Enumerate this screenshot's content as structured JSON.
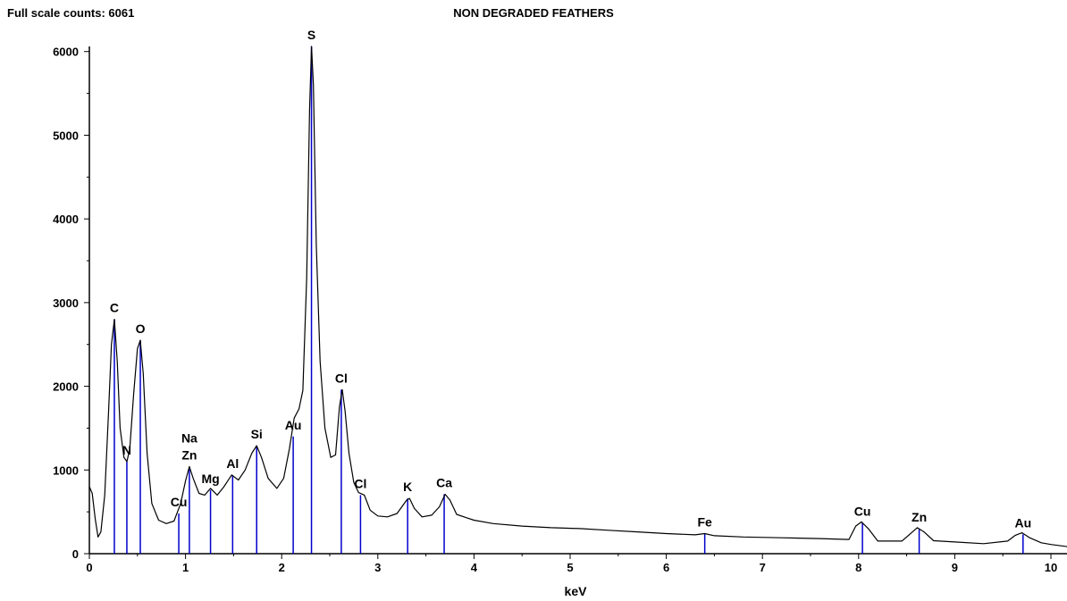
{
  "header": {
    "full_scale": "Full scale counts: 6061",
    "title": "NON DEGRADED FEATHERS"
  },
  "colors": {
    "marker": "#0000cc",
    "spectrum": "#000000",
    "axis": "#000000"
  },
  "chart_data": {
    "type": "line",
    "title": "NON DEGRADED FEATHERS",
    "xlabel": "keV",
    "ylabel": "",
    "xlim": [
      0,
      10.2
    ],
    "ylim": [
      0,
      6061
    ],
    "x_ticks": [
      0,
      1,
      2,
      3,
      4,
      5,
      6,
      7,
      8,
      9,
      10
    ],
    "y_ticks": [
      0,
      1000,
      2000,
      3000,
      4000,
      5000,
      6000
    ],
    "full_scale_counts": 6061,
    "series": [
      {
        "points": [
          [
            0.0,
            800
          ],
          [
            0.03,
            720
          ],
          [
            0.06,
            420
          ],
          [
            0.09,
            200
          ],
          [
            0.12,
            260
          ],
          [
            0.16,
            700
          ],
          [
            0.2,
            1700
          ],
          [
            0.23,
            2500
          ],
          [
            0.26,
            2800
          ],
          [
            0.29,
            2300
          ],
          [
            0.32,
            1500
          ],
          [
            0.36,
            1150
          ],
          [
            0.39,
            1100
          ],
          [
            0.42,
            1250
          ],
          [
            0.46,
            1900
          ],
          [
            0.5,
            2450
          ],
          [
            0.53,
            2550
          ],
          [
            0.56,
            2150
          ],
          [
            0.6,
            1200
          ],
          [
            0.65,
            600
          ],
          [
            0.72,
            400
          ],
          [
            0.8,
            360
          ],
          [
            0.88,
            390
          ],
          [
            0.95,
            600
          ],
          [
            1.0,
            870
          ],
          [
            1.04,
            1040
          ],
          [
            1.08,
            900
          ],
          [
            1.14,
            720
          ],
          [
            1.2,
            700
          ],
          [
            1.26,
            780
          ],
          [
            1.33,
            700
          ],
          [
            1.4,
            800
          ],
          [
            1.48,
            940
          ],
          [
            1.55,
            880
          ],
          [
            1.62,
            1000
          ],
          [
            1.69,
            1200
          ],
          [
            1.74,
            1290
          ],
          [
            1.79,
            1150
          ],
          [
            1.86,
            900
          ],
          [
            1.95,
            780
          ],
          [
            2.02,
            900
          ],
          [
            2.08,
            1250
          ],
          [
            2.13,
            1620
          ],
          [
            2.18,
            1730
          ],
          [
            2.22,
            1950
          ],
          [
            2.26,
            3300
          ],
          [
            2.29,
            5300
          ],
          [
            2.31,
            6061
          ],
          [
            2.33,
            5600
          ],
          [
            2.36,
            3700
          ],
          [
            2.4,
            2300
          ],
          [
            2.45,
            1500
          ],
          [
            2.51,
            1150
          ],
          [
            2.56,
            1180
          ],
          [
            2.6,
            1750
          ],
          [
            2.63,
            1960
          ],
          [
            2.66,
            1700
          ],
          [
            2.7,
            1200
          ],
          [
            2.75,
            850
          ],
          [
            2.8,
            730
          ],
          [
            2.86,
            700
          ],
          [
            2.92,
            520
          ],
          [
            3.0,
            450
          ],
          [
            3.1,
            440
          ],
          [
            3.2,
            480
          ],
          [
            3.3,
            640
          ],
          [
            3.33,
            660
          ],
          [
            3.38,
            540
          ],
          [
            3.46,
            440
          ],
          [
            3.56,
            460
          ],
          [
            3.64,
            560
          ],
          [
            3.7,
            710
          ],
          [
            3.75,
            640
          ],
          [
            3.82,
            470
          ],
          [
            3.92,
            430
          ],
          [
            4.0,
            400
          ],
          [
            4.2,
            360
          ],
          [
            4.5,
            330
          ],
          [
            4.8,
            310
          ],
          [
            5.1,
            300
          ],
          [
            5.4,
            280
          ],
          [
            5.7,
            260
          ],
          [
            6.0,
            240
          ],
          [
            6.3,
            225
          ],
          [
            6.4,
            240
          ],
          [
            6.5,
            215
          ],
          [
            6.8,
            200
          ],
          [
            7.2,
            190
          ],
          [
            7.6,
            180
          ],
          [
            7.9,
            170
          ],
          [
            7.97,
            330
          ],
          [
            8.03,
            380
          ],
          [
            8.1,
            300
          ],
          [
            8.2,
            150
          ],
          [
            8.45,
            150
          ],
          [
            8.55,
            250
          ],
          [
            8.61,
            310
          ],
          [
            8.68,
            260
          ],
          [
            8.78,
            155
          ],
          [
            9.0,
            140
          ],
          [
            9.3,
            120
          ],
          [
            9.55,
            150
          ],
          [
            9.63,
            220
          ],
          [
            9.7,
            250
          ],
          [
            9.78,
            190
          ],
          [
            9.9,
            130
          ],
          [
            10.0,
            110
          ],
          [
            10.2,
            80
          ]
        ]
      }
    ],
    "peaks": [
      {
        "label": "C",
        "x": 0.26,
        "y": 2800
      },
      {
        "label": "N",
        "x": 0.39,
        "y": 1100
      },
      {
        "label": "O",
        "x": 0.53,
        "y": 2550
      },
      {
        "label": "Cu",
        "x": 0.93,
        "y": 480
      },
      {
        "label": "Na\nZn",
        "x": 1.04,
        "y": 1040
      },
      {
        "label": "Mg",
        "x": 1.26,
        "y": 760
      },
      {
        "label": "Al",
        "x": 1.49,
        "y": 940
      },
      {
        "label": "Si",
        "x": 1.74,
        "y": 1290
      },
      {
        "label": "Au",
        "x": 2.12,
        "y": 1400
      },
      {
        "label": "S",
        "x": 2.31,
        "y": 6061
      },
      {
        "label": "Cl",
        "x": 2.62,
        "y": 1960
      },
      {
        "label": "Cl",
        "x": 2.82,
        "y": 700
      },
      {
        "label": "K",
        "x": 3.31,
        "y": 660
      },
      {
        "label": "Ca",
        "x": 3.69,
        "y": 710
      },
      {
        "label": "Fe",
        "x": 6.4,
        "y": 240
      },
      {
        "label": "Cu",
        "x": 8.04,
        "y": 370
      },
      {
        "label": "Zn",
        "x": 8.63,
        "y": 300
      },
      {
        "label": "Au",
        "x": 9.71,
        "y": 230
      }
    ]
  }
}
